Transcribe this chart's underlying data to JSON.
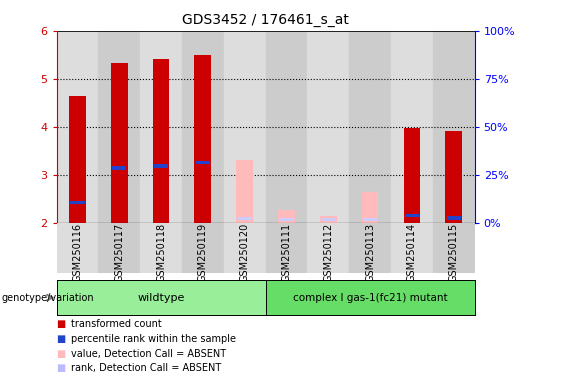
{
  "title": "GDS3452 / 176461_s_at",
  "samples": [
    "GSM250116",
    "GSM250117",
    "GSM250118",
    "GSM250119",
    "GSM250120",
    "GSM250111",
    "GSM250112",
    "GSM250113",
    "GSM250114",
    "GSM250115"
  ],
  "red_values": [
    4.65,
    5.32,
    5.42,
    5.5,
    null,
    null,
    null,
    null,
    3.98,
    3.92
  ],
  "blue_values": [
    2.42,
    3.14,
    3.18,
    3.26,
    null,
    null,
    null,
    null,
    2.15,
    2.1
  ],
  "pink_values": [
    null,
    null,
    null,
    null,
    3.3,
    2.27,
    2.14,
    2.65,
    null,
    null
  ],
  "lightblue_values": [
    null,
    null,
    null,
    null,
    2.08,
    2.07,
    2.06,
    2.06,
    null,
    null
  ],
  "ylim": [
    2.0,
    6.0
  ],
  "yticks": [
    2,
    3,
    4,
    5,
    6
  ],
  "y2ticks": [
    0,
    25,
    50,
    75,
    100
  ],
  "y2labels": [
    "0%",
    "25%",
    "50%",
    "75%",
    "100%"
  ],
  "wildtype_count": 5,
  "mutant_count": 5,
  "wildtype_label": "wildtype",
  "mutant_label": "complex I gas-1(fc21) mutant",
  "genotype_label": "genotype/variation",
  "legend_items": [
    {
      "color": "#cc0000",
      "label": "transformed count"
    },
    {
      "color": "#2244cc",
      "label": "percentile rank within the sample"
    },
    {
      "color": "#ffbbbb",
      "label": "value, Detection Call = ABSENT"
    },
    {
      "color": "#bbbbff",
      "label": "rank, Detection Call = ABSENT"
    }
  ],
  "bar_width": 0.4,
  "red_color": "#cc0000",
  "blue_color": "#2244cc",
  "pink_color": "#ffbbbb",
  "lightblue_color": "#ccccff",
  "wildtype_bg": "#99ee99",
  "mutant_bg": "#66dd66",
  "sample_bg_light": "#dddddd",
  "sample_bg_dark": "#cccccc",
  "plot_bg": "#ffffff"
}
